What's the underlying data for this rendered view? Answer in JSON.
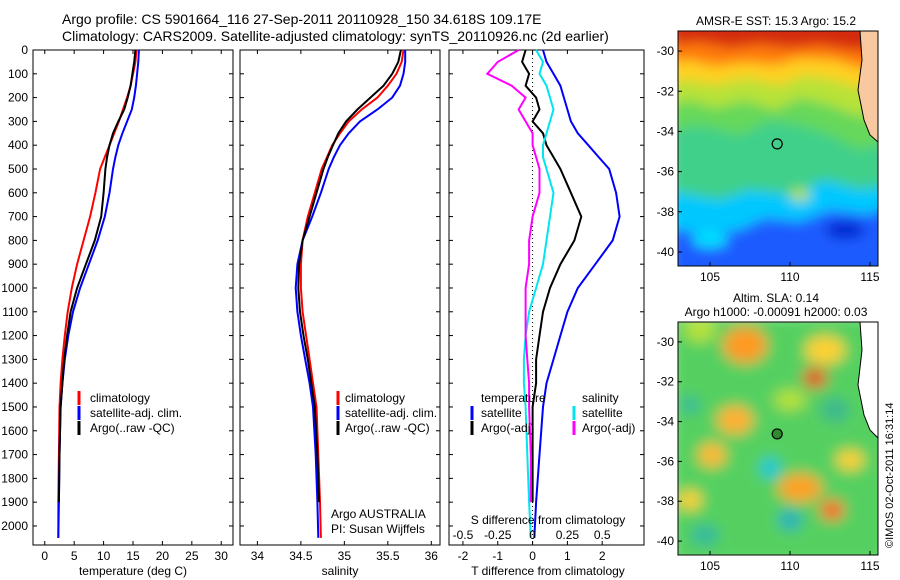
{
  "header": {
    "line1": "Argo profile: CS 5901664_116 27-Sep-2011 20110928_150 34.618S 109.17E",
    "line2": "Climatology: CARS2009. Satellite-adjusted climatology: synTS_20110926.nc (2d earlier)"
  },
  "watermark": "©IMOS 02-Oct-2011 16:31:14",
  "colors": {
    "climatology": "#ff0000",
    "satellite": "#0000ff",
    "argo": "#000000",
    "sat_diff_sal": "#00e5ee",
    "argo_diff_sal": "#ff00ff"
  },
  "chart_data": [
    {
      "type": "line",
      "id": "temperature",
      "xlabel": "temperature (deg C)",
      "xlim": [
        -2,
        32
      ],
      "ylim": [
        2080,
        0
      ],
      "xticks": [
        "0",
        "5",
        "10",
        "15",
        "20",
        "25",
        "30"
      ],
      "yticks": [
        "0",
        "100",
        "200",
        "300",
        "400",
        "500",
        "600",
        "700",
        "800",
        "900",
        "1000",
        "1100",
        "1200",
        "1300",
        "1400",
        "1500",
        "1600",
        "1700",
        "1800",
        "1900",
        "2000"
      ],
      "legend": [
        "climatology",
        "satellite-adj. clim.",
        "Argo(..raw -QC)"
      ],
      "series": [
        {
          "name": "climatology",
          "color": "#ff0000",
          "x": [
            15.6,
            15.4,
            15.0,
            14.6,
            14.0,
            13.3,
            12.6,
            11.8,
            11.0,
            10.2,
            9.4,
            8.6,
            7.7,
            6.6,
            5.5,
            4.6,
            3.9,
            3.4,
            3.0,
            2.7,
            2.5,
            2.4,
            2.3,
            2.3
          ],
          "y": [
            0,
            50,
            100,
            150,
            200,
            250,
            300,
            350,
            400,
            450,
            500,
            600,
            700,
            800,
            900,
            1000,
            1100,
            1200,
            1300,
            1400,
            1500,
            1700,
            1900,
            2050
          ]
        },
        {
          "name": "satellite-adj. clim.",
          "color": "#0000ff",
          "x": [
            16.0,
            15.9,
            15.7,
            15.5,
            15.2,
            14.8,
            14.0,
            13.2,
            12.5,
            12.0,
            11.6,
            11.0,
            10.2,
            9.0,
            7.5,
            6.0,
            4.8,
            4.0,
            3.4,
            3.0,
            2.7,
            2.5,
            2.4,
            2.3
          ],
          "y": [
            0,
            50,
            100,
            150,
            200,
            250,
            300,
            350,
            400,
            450,
            500,
            600,
            700,
            800,
            900,
            1000,
            1100,
            1200,
            1300,
            1400,
            1500,
            1700,
            1900,
            2050
          ]
        },
        {
          "name": "Argo(..raw -QC)",
          "color": "#000000",
          "x": [
            15.4,
            15.2,
            14.9,
            14.6,
            14.1,
            13.5,
            12.5,
            11.6,
            11.0,
            10.6,
            10.3,
            10.0,
            9.6,
            8.5,
            7.0,
            5.5,
            4.4,
            3.8,
            3.3,
            3.0,
            2.7,
            2.5,
            2.4
          ],
          "y": [
            0,
            50,
            100,
            150,
            200,
            250,
            300,
            350,
            400,
            450,
            500,
            600,
            700,
            800,
            900,
            1000,
            1100,
            1200,
            1300,
            1400,
            1500,
            1700,
            1900
          ]
        }
      ]
    },
    {
      "type": "line",
      "id": "salinity",
      "xlabel": "salinity",
      "xlim": [
        33.8,
        36.1
      ],
      "ylim": [
        2080,
        0
      ],
      "xticks": [
        "34",
        "34.5",
        "35",
        "35.5",
        "36"
      ],
      "legend": [
        "climatology",
        "satellite-adj. clim.",
        "Argo(..raw -QC)"
      ],
      "annotation": [
        "Argo AUSTRALIA",
        "PI: Susan Wijffels"
      ],
      "series": [
        {
          "name": "climatology",
          "color": "#ff0000",
          "x": [
            35.68,
            35.66,
            35.6,
            35.5,
            35.38,
            35.2,
            35.05,
            34.95,
            34.86,
            34.8,
            34.74,
            34.66,
            34.58,
            34.52,
            34.5,
            34.5,
            34.52,
            34.56,
            34.6,
            34.64,
            34.68,
            34.7,
            34.72,
            34.73
          ],
          "y": [
            0,
            50,
            100,
            150,
            200,
            250,
            300,
            350,
            400,
            450,
            500,
            600,
            700,
            800,
            900,
            1000,
            1100,
            1200,
            1300,
            1400,
            1500,
            1700,
            1900,
            2050
          ]
        },
        {
          "name": "satellite-adj. clim.",
          "color": "#0000ff",
          "x": [
            35.7,
            35.7,
            35.68,
            35.64,
            35.55,
            35.38,
            35.18,
            35.05,
            34.95,
            34.88,
            34.82,
            34.73,
            34.63,
            34.52,
            34.46,
            34.44,
            34.46,
            34.5,
            34.55,
            34.6,
            34.64,
            34.67,
            34.69,
            34.7
          ],
          "y": [
            0,
            50,
            100,
            150,
            200,
            250,
            300,
            350,
            400,
            450,
            500,
            600,
            700,
            800,
            900,
            1000,
            1100,
            1200,
            1300,
            1400,
            1500,
            1700,
            1900,
            2050
          ]
        },
        {
          "name": "Argo(..raw -QC)",
          "color": "#000000",
          "x": [
            35.65,
            35.62,
            35.55,
            35.45,
            35.3,
            35.15,
            35.02,
            34.93,
            34.87,
            34.81,
            34.76,
            34.68,
            34.6,
            34.52,
            34.48,
            34.47,
            34.49,
            34.53,
            34.58,
            34.62,
            34.66,
            34.69,
            34.71
          ],
          "y": [
            0,
            50,
            100,
            150,
            200,
            250,
            300,
            350,
            400,
            450,
            500,
            600,
            700,
            800,
            900,
            1000,
            1100,
            1200,
            1300,
            1400,
            1500,
            1700,
            1900
          ]
        }
      ]
    },
    {
      "type": "line",
      "id": "difference",
      "xlabel": "T difference from climatology",
      "xlabel2": "S difference from climatology",
      "xlim": [
        -2.4,
        3.2
      ],
      "ylim": [
        2080,
        0
      ],
      "xticks": [
        "-2",
        "-1",
        "0",
        "1",
        "2"
      ],
      "xticks_s": [
        "-0.5",
        "-0.25",
        "0",
        "0.25",
        "0.5"
      ],
      "legend_t": [
        "temperature",
        "satellite",
        "Argo(-adj)"
      ],
      "legend_s": [
        "salinity",
        "satellite",
        "Argo(-adj)"
      ],
      "series": [
        {
          "name": "satellite",
          "color": "#0000ff",
          "x": [
            0.3,
            0.4,
            0.6,
            0.8,
            0.9,
            1.0,
            1.1,
            1.3,
            1.6,
            1.9,
            2.2,
            2.4,
            2.5,
            2.3,
            1.8,
            1.3,
            1.0,
            0.8,
            0.6,
            0.4,
            0.3,
            0.2,
            0.1,
            0.05
          ],
          "y": [
            0,
            50,
            100,
            150,
            200,
            250,
            300,
            350,
            400,
            450,
            500,
            600,
            700,
            800,
            900,
            1000,
            1100,
            1200,
            1300,
            1400,
            1500,
            1700,
            1900,
            2050
          ]
        },
        {
          "name": "Argo(-adj)",
          "color": "#000000",
          "x": [
            -0.2,
            -0.3,
            -0.1,
            -0.2,
            0.1,
            0.2,
            0.0,
            0.3,
            0.4,
            0.6,
            0.8,
            1.1,
            1.4,
            1.2,
            0.8,
            0.5,
            0.3,
            0.2,
            0.1,
            0.1,
            0.0,
            0.0,
            0.0
          ],
          "y": [
            0,
            50,
            100,
            150,
            200,
            250,
            300,
            350,
            400,
            450,
            500,
            600,
            700,
            800,
            900,
            1000,
            1100,
            1200,
            1300,
            1400,
            1500,
            1700,
            1900
          ]
        },
        {
          "name": "satellite",
          "color": "#00e5ee",
          "x": [
            0.1,
            0.3,
            0.2,
            0.4,
            0.5,
            0.6,
            0.5,
            0.4,
            0.3,
            0.3,
            0.4,
            0.6,
            0.5,
            0.4,
            0.3,
            0.1,
            -0.1,
            -0.2,
            -0.25,
            -0.25,
            -0.2,
            -0.15,
            -0.1,
            -0.05
          ],
          "y": [
            0,
            50,
            100,
            150,
            200,
            250,
            300,
            350,
            400,
            450,
            500,
            600,
            700,
            800,
            900,
            1000,
            1100,
            1200,
            1300,
            1400,
            1500,
            1700,
            1900,
            2050
          ]
        },
        {
          "name": "Argo(-adj)",
          "color": "#ff00ff",
          "x": [
            -0.4,
            -1.0,
            -1.3,
            -0.6,
            -0.2,
            -0.4,
            -0.2,
            0.0,
            0.0,
            0.1,
            0.2,
            0.2,
            0.0,
            -0.1,
            -0.1,
            -0.2,
            -0.2,
            -0.2,
            -0.15,
            -0.1,
            -0.1,
            -0.05,
            -0.05
          ],
          "y": [
            0,
            50,
            100,
            150,
            200,
            250,
            300,
            350,
            400,
            450,
            500,
            600,
            700,
            800,
            900,
            1000,
            1100,
            1200,
            1300,
            1400,
            1500,
            1700,
            1900
          ]
        }
      ]
    },
    {
      "type": "heatmap",
      "id": "sst-map",
      "title": "AMSR-E SST: 15.3 Argo: 15.2",
      "xlim": [
        103,
        115.5
      ],
      "ylim": [
        -40.7,
        -29
      ],
      "xticks": [
        "105",
        "110",
        "115"
      ],
      "yticks": [
        "-30",
        "-32",
        "-34",
        "-36",
        "-38",
        "-40"
      ],
      "marker": [
        109.2,
        -34.62
      ]
    },
    {
      "type": "heatmap",
      "id": "sla-map",
      "title1": "Altim. SLA: 0.14",
      "title2": "Argo h1000: -0.00091 h2000: 0.03",
      "xlim": [
        103,
        115.5
      ],
      "ylim": [
        -40.7,
        -29
      ],
      "xticks": [
        "105",
        "110",
        "115"
      ],
      "yticks": [
        "-30",
        "-32",
        "-34",
        "-36",
        "-38",
        "-40"
      ],
      "marker": [
        109.2,
        -34.62
      ]
    }
  ]
}
